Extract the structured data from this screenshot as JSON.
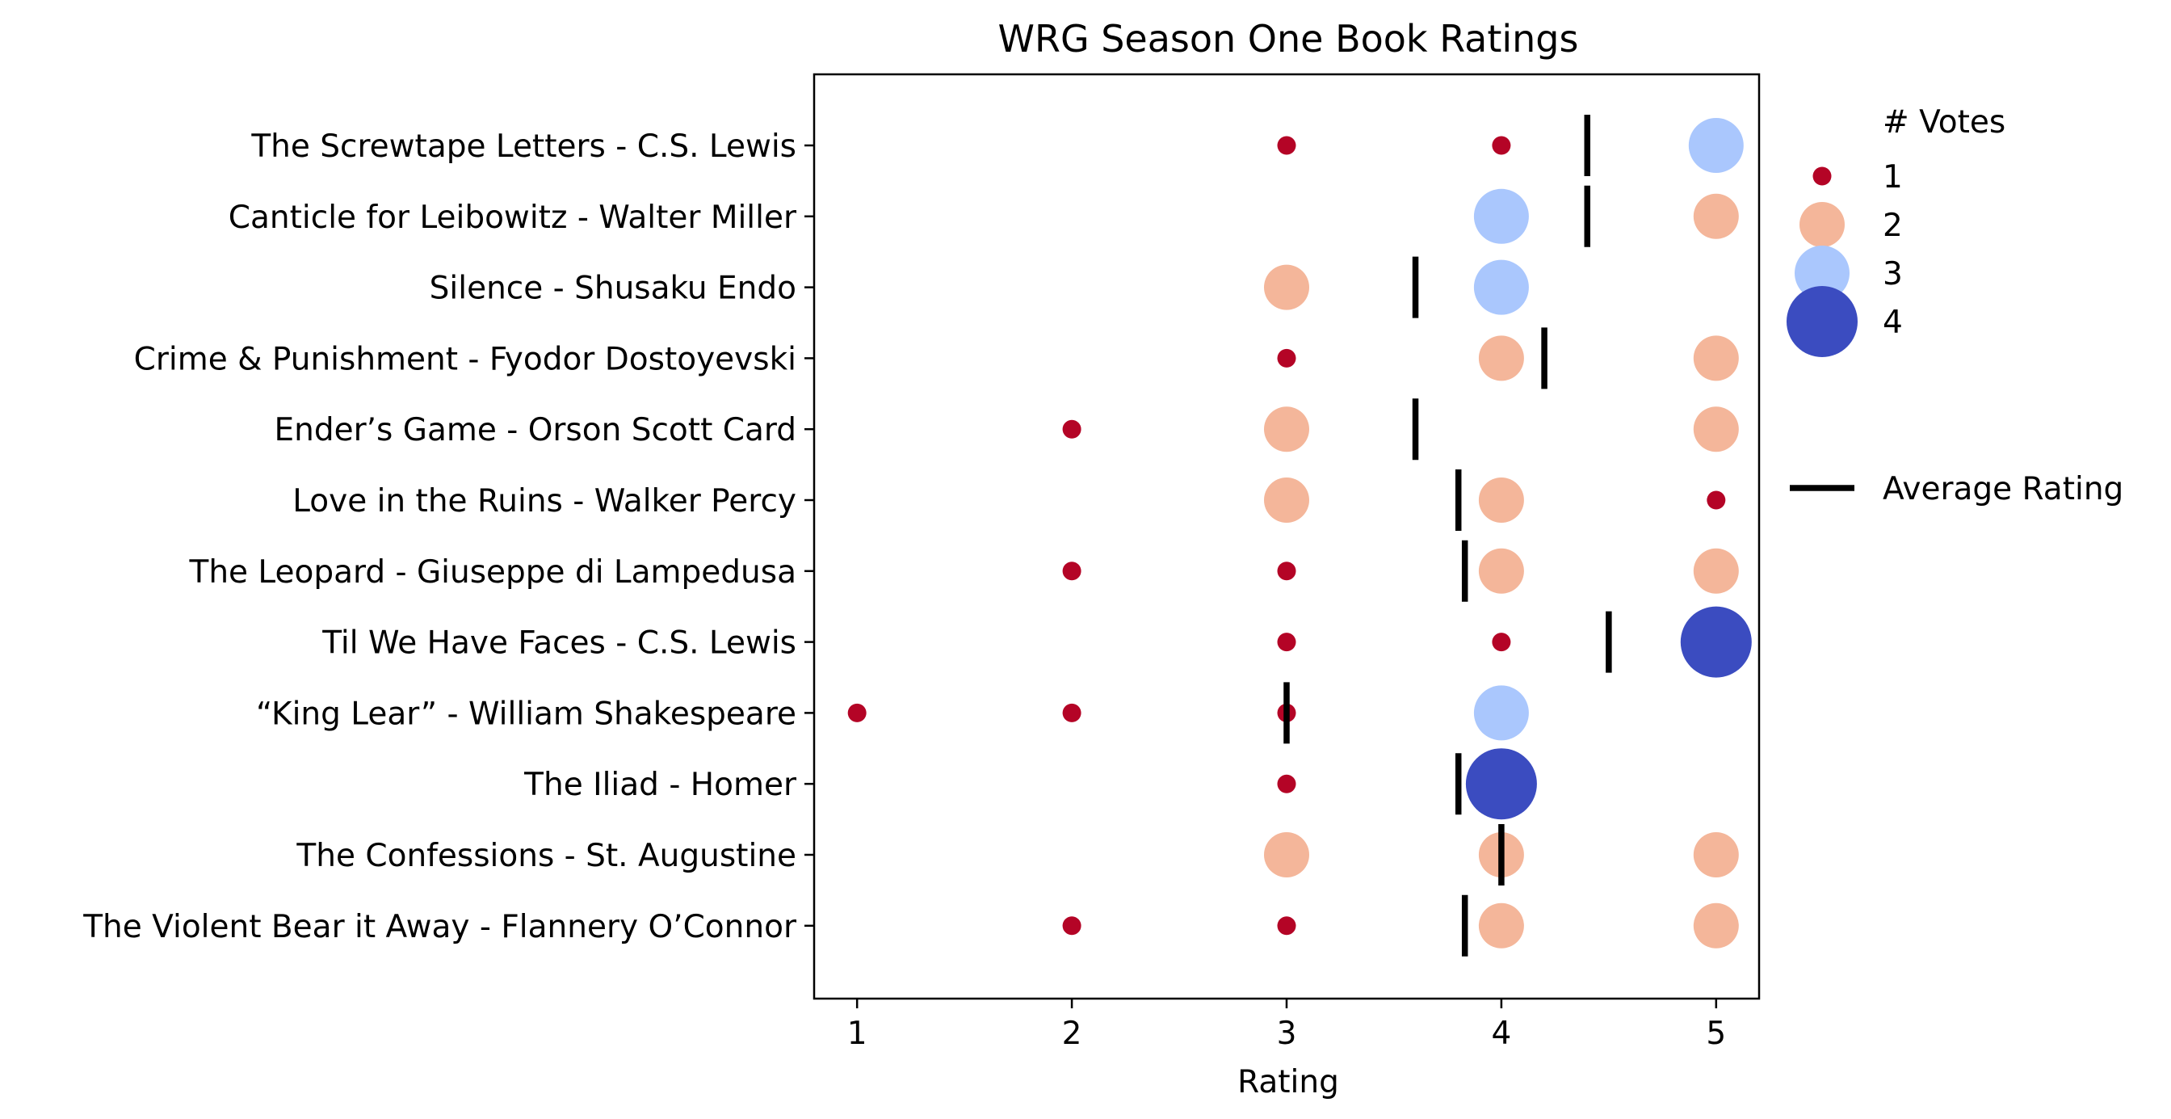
{
  "chart_data": {
    "type": "scatter",
    "title": "WRG Season One Book Ratings",
    "xlabel": "Rating",
    "ylabel": "",
    "xlim": [
      0.8,
      5.2
    ],
    "xticks": [
      "1",
      "2",
      "3",
      "4",
      "5"
    ],
    "grid": false,
    "legend_position": "outside-right",
    "legend": {
      "size_title": "# Votes",
      "size_entries": [
        {
          "label": "1",
          "votes": 1,
          "color": "#b40426"
        },
        {
          "label": "2",
          "votes": 2,
          "color": "#f4b69a"
        },
        {
          "label": "3",
          "votes": 3,
          "color": "#aac7fd"
        },
        {
          "label": "4",
          "votes": 4,
          "color": "#3b4cc0"
        }
      ],
      "average_label": "Average Rating"
    },
    "books": [
      {
        "label": "The Screwtape Letters - C.S. Lewis",
        "average": 4.4,
        "points": [
          {
            "rating": 3,
            "votes": 1
          },
          {
            "rating": 4,
            "votes": 1
          },
          {
            "rating": 5,
            "votes": 3
          }
        ]
      },
      {
        "label": "Canticle for Leibowitz - Walter Miller",
        "average": 4.4,
        "points": [
          {
            "rating": 4,
            "votes": 3
          },
          {
            "rating": 5,
            "votes": 2
          }
        ]
      },
      {
        "label": "Silence - Shusaku Endo",
        "average": 3.6,
        "points": [
          {
            "rating": 3,
            "votes": 2
          },
          {
            "rating": 4,
            "votes": 3
          }
        ]
      },
      {
        "label": "Crime & Punishment - Fyodor Dostoyevski",
        "average": 4.2,
        "points": [
          {
            "rating": 3,
            "votes": 1
          },
          {
            "rating": 4,
            "votes": 2
          },
          {
            "rating": 5,
            "votes": 2
          }
        ]
      },
      {
        "label": "Ender’s Game - Orson Scott Card",
        "average": 3.6,
        "points": [
          {
            "rating": 2,
            "votes": 1
          },
          {
            "rating": 3,
            "votes": 2
          },
          {
            "rating": 5,
            "votes": 2
          }
        ]
      },
      {
        "label": "Love in the Ruins - Walker Percy",
        "average": 3.8,
        "points": [
          {
            "rating": 3,
            "votes": 2
          },
          {
            "rating": 4,
            "votes": 2
          },
          {
            "rating": 5,
            "votes": 1
          }
        ]
      },
      {
        "label": "The Leopard - Giuseppe di Lampedusa",
        "average": 3.83,
        "points": [
          {
            "rating": 2,
            "votes": 1
          },
          {
            "rating": 3,
            "votes": 1
          },
          {
            "rating": 4,
            "votes": 2
          },
          {
            "rating": 5,
            "votes": 2
          }
        ]
      },
      {
        "label": "Til We Have Faces - C.S. Lewis",
        "average": 4.5,
        "points": [
          {
            "rating": 3,
            "votes": 1
          },
          {
            "rating": 4,
            "votes": 1
          },
          {
            "rating": 5,
            "votes": 4
          }
        ]
      },
      {
        "label": "“King Lear” - William Shakespeare",
        "average": 3.0,
        "points": [
          {
            "rating": 1,
            "votes": 1
          },
          {
            "rating": 2,
            "votes": 1
          },
          {
            "rating": 3,
            "votes": 1
          },
          {
            "rating": 4,
            "votes": 3
          }
        ]
      },
      {
        "label": "The Iliad - Homer",
        "average": 3.8,
        "points": [
          {
            "rating": 3,
            "votes": 1
          },
          {
            "rating": 4,
            "votes": 4
          }
        ]
      },
      {
        "label": "The Confessions - St. Augustine",
        "average": 4.0,
        "points": [
          {
            "rating": 3,
            "votes": 2
          },
          {
            "rating": 4,
            "votes": 2
          },
          {
            "rating": 5,
            "votes": 2
          }
        ]
      },
      {
        "label": "The Violent Bear it Away - Flannery O’Connor",
        "average": 3.83,
        "points": [
          {
            "rating": 2,
            "votes": 1
          },
          {
            "rating": 3,
            "votes": 1
          },
          {
            "rating": 4,
            "votes": 2
          },
          {
            "rating": 5,
            "votes": 2
          }
        ]
      }
    ]
  }
}
